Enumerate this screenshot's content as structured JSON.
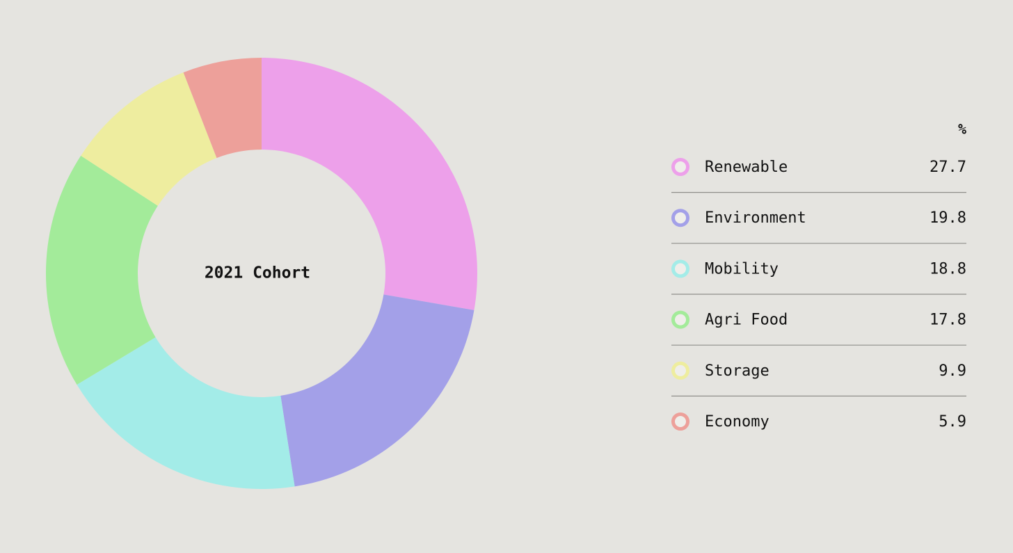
{
  "chart_data": {
    "type": "pie",
    "title": "2021 Cohort",
    "value_header": "%",
    "categories": [
      "Renewable",
      "Environment",
      "Mobility",
      "Agri Food",
      "Storage",
      "Economy"
    ],
    "values": [
      27.7,
      19.8,
      18.8,
      17.8,
      9.9,
      5.9
    ],
    "colors": [
      "#eda0ea",
      "#a3a0e8",
      "#a3ece8",
      "#a3eb9a",
      "#eeed9f",
      "#eda09a"
    ],
    "donut": true,
    "legend": "right"
  }
}
